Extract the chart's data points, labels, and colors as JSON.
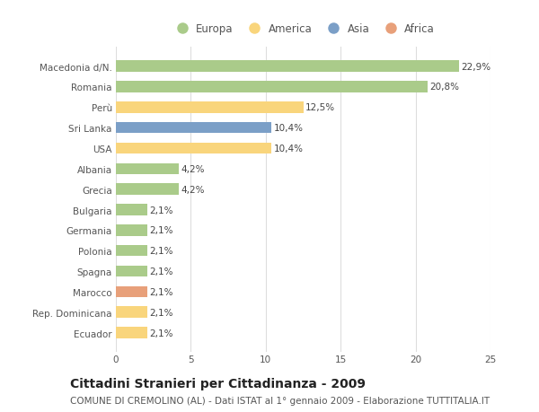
{
  "categories": [
    "Ecuador",
    "Rep. Dominicana",
    "Marocco",
    "Spagna",
    "Polonia",
    "Germania",
    "Bulgaria",
    "Grecia",
    "Albania",
    "USA",
    "Sri Lanka",
    "Perù",
    "Romania",
    "Macedonia d/N."
  ],
  "values": [
    2.1,
    2.1,
    2.1,
    2.1,
    2.1,
    2.1,
    2.1,
    4.2,
    4.2,
    10.4,
    10.4,
    12.5,
    20.8,
    22.9
  ],
  "continents": [
    "America",
    "America",
    "Africa",
    "Europa",
    "Europa",
    "Europa",
    "Europa",
    "Europa",
    "Europa",
    "America",
    "Asia",
    "America",
    "Europa",
    "Europa"
  ],
  "labels": [
    "2,1%",
    "2,1%",
    "2,1%",
    "2,1%",
    "2,1%",
    "2,1%",
    "2,1%",
    "4,2%",
    "4,2%",
    "10,4%",
    "10,4%",
    "12,5%",
    "20,8%",
    "22,9%"
  ],
  "colors": {
    "Europa": "#aacb8a",
    "America": "#f9d57c",
    "Asia": "#7b9fc7",
    "Africa": "#e8a07a"
  },
  "legend_order": [
    "Europa",
    "America",
    "Asia",
    "Africa"
  ],
  "xlim": [
    0,
    25
  ],
  "xticks": [
    0,
    5,
    10,
    15,
    20,
    25
  ],
  "title": "Cittadini Stranieri per Cittadinanza - 2009",
  "subtitle": "COMUNE DI CREMOLINO (AL) - Dati ISTAT al 1° gennaio 2009 - Elaborazione TUTTITALIA.IT",
  "background_color": "#ffffff",
  "grid_color": "#dddddd",
  "bar_height": 0.55,
  "label_fontsize": 7.5,
  "tick_fontsize": 7.5,
  "title_fontsize": 10,
  "subtitle_fontsize": 7.5
}
